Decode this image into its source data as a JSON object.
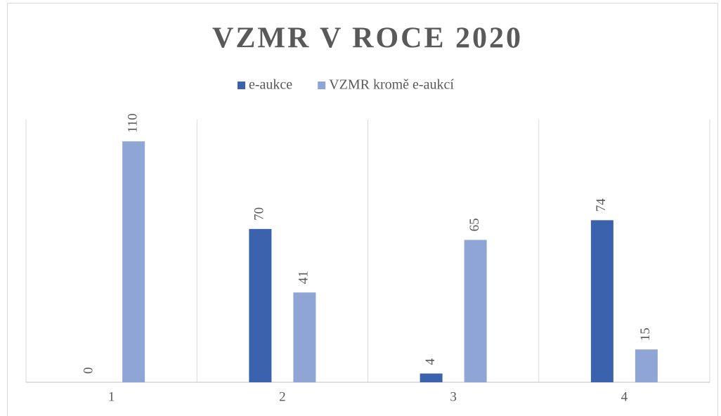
{
  "chart_data": {
    "type": "bar",
    "title": "VZMR V ROCE 2020",
    "categories": [
      "1",
      "2",
      "3",
      "4"
    ],
    "series": [
      {
        "name": "e-aukce",
        "color": "#3b63ad",
        "values": [
          0,
          70,
          4,
          74
        ]
      },
      {
        "name": "VZMR kromě e-aukcí",
        "color": "#8fa5d6",
        "values": [
          110,
          41,
          65,
          15
        ]
      }
    ],
    "ylim": [
      0,
      120
    ],
    "legend": "top"
  }
}
